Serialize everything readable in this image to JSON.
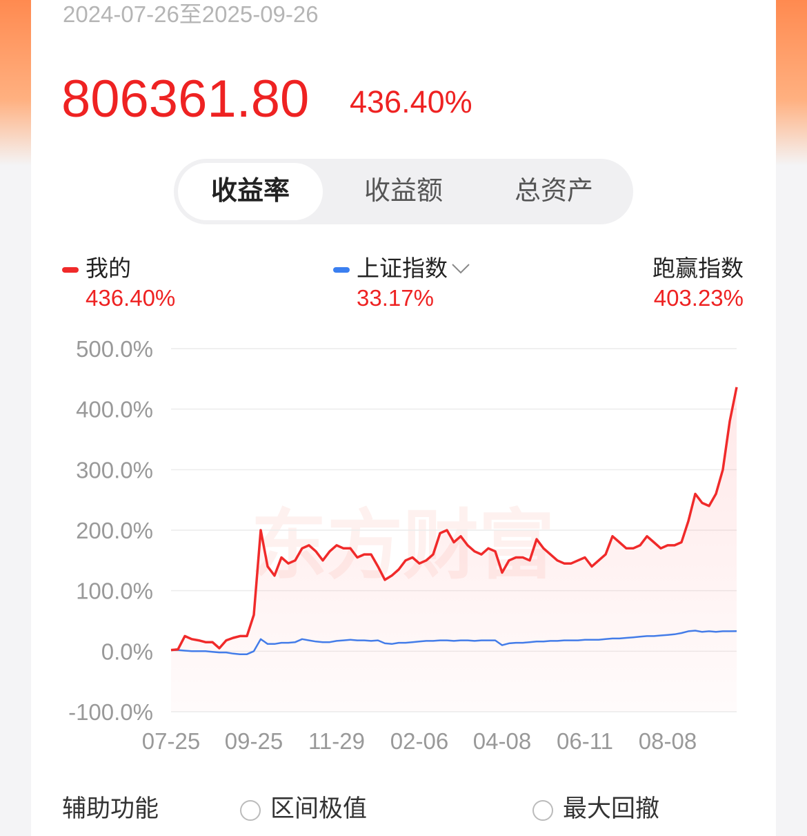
{
  "header": {
    "date_range": "2024-07-26至2025-09-26",
    "amount": "806361.80",
    "return": "436.40%"
  },
  "tabs": [
    "收益率",
    "收益额",
    "总资产"
  ],
  "legend_labels": [
    null,
    null,
    "跑赢指数"
  ],
  "legend_values": [
    "436.40%",
    "33.17%",
    "403.23%"
  ],
  "watermark": "东方财富",
  "footer": {
    "label": "辅助功能",
    "options": [
      "区间极值",
      "最大回撤"
    ]
  },
  "chart_data": {
    "type": "line",
    "categories": [
      "07-25",
      null,
      null,
      null,
      null,
      null,
      null,
      null,
      null,
      null,
      null,
      null,
      "09-25",
      null,
      null,
      null,
      null,
      null,
      null,
      null,
      null,
      null,
      null,
      null,
      "11-29",
      null,
      null,
      null,
      null,
      null,
      null,
      null,
      null,
      null,
      null,
      null,
      "02-06",
      null,
      null,
      null,
      null,
      null,
      null,
      null,
      null,
      null,
      null,
      null,
      "04-08",
      null,
      null,
      null,
      null,
      null,
      null,
      null,
      null,
      null,
      null,
      null,
      "06-11",
      null,
      null,
      null,
      null,
      null,
      null,
      null,
      null,
      null,
      null,
      null,
      "08-08",
      null,
      null,
      null,
      null,
      null,
      null,
      null,
      null,
      null,
      null
    ],
    "series": [
      {
        "name": "我的",
        "color": "#f02a2a",
        "values": [
          2,
          3,
          25,
          20,
          18,
          15,
          15,
          5,
          18,
          22,
          25,
          25,
          60,
          200,
          140,
          125,
          155,
          145,
          150,
          170,
          175,
          165,
          150,
          165,
          175,
          170,
          170,
          155,
          160,
          160,
          140,
          118,
          125,
          135,
          150,
          155,
          145,
          150,
          160,
          195,
          200,
          180,
          190,
          175,
          165,
          160,
          170,
          165,
          130,
          150,
          155,
          155,
          150,
          185,
          170,
          160,
          150,
          145,
          145,
          150,
          155,
          140,
          150,
          160,
          190,
          180,
          170,
          170,
          175,
          190,
          180,
          170,
          175,
          175,
          180,
          215,
          260,
          245,
          240,
          260,
          300,
          380,
          436.4
        ]
      },
      {
        "name": "上证指数",
        "color": "#3b7ff0",
        "values": [
          2,
          2,
          1,
          0,
          0,
          0,
          -1,
          -2,
          -2,
          -4,
          -5,
          -5,
          0,
          20,
          12,
          12,
          14,
          14,
          15,
          20,
          18,
          16,
          15,
          15,
          17,
          18,
          19,
          18,
          18,
          17,
          18,
          13,
          12,
          14,
          14,
          15,
          16,
          17,
          17,
          18,
          18,
          17,
          18,
          18,
          17,
          18,
          18,
          18,
          10,
          13,
          14,
          14,
          15,
          16,
          16,
          17,
          17,
          18,
          18,
          18,
          19,
          19,
          19,
          20,
          21,
          21,
          22,
          23,
          24,
          25,
          25,
          26,
          27,
          28,
          30,
          33,
          34,
          32,
          33,
          32,
          33,
          33,
          33.17
        ]
      }
    ],
    "ylim": [
      -100,
      500
    ],
    "yticks": [
      {
        "value": 500,
        "label": "500.0%"
      },
      {
        "value": 400,
        "label": "400.0%"
      },
      {
        "value": 300,
        "label": "300.0%"
      },
      {
        "value": 200,
        "label": "200.0%"
      },
      {
        "value": 100,
        "label": "100.0%"
      },
      {
        "value": 0,
        "label": "0.0%"
      },
      {
        "value": -100,
        "label": "-100.0%"
      }
    ],
    "grid": true
  }
}
